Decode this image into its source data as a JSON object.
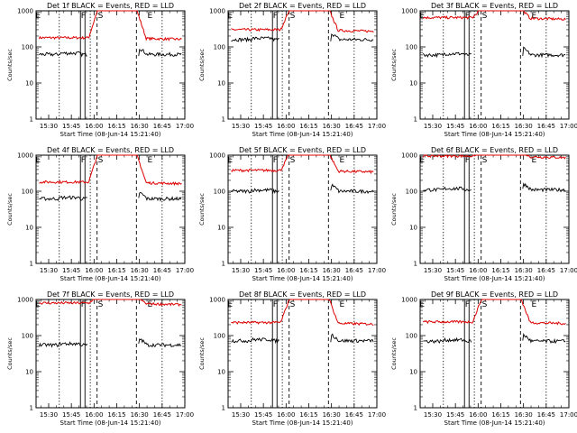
{
  "chart_data": [
    {
      "type": "line",
      "title": "Det 1f BLACK = Events, RED = LLD",
      "red_mid": 180,
      "red_peak": 1000,
      "black_mid": 62,
      "markers": {
        "E_left": true,
        "F": true,
        "S": true,
        "E_right": true
      }
    },
    {
      "type": "line",
      "title": "Det 2f BLACK = Events, RED = LLD",
      "red_mid": 300,
      "red_peak": 1000,
      "black_mid": 160,
      "markers": {
        "E_left": true,
        "F": true,
        "S": true,
        "E_right": true
      }
    },
    {
      "type": "line",
      "title": "Det 3f BLACK = Events, RED = LLD",
      "red_mid": 650,
      "red_peak": 1000,
      "black_mid": 60,
      "markers": {
        "E_left": true,
        "F": true,
        "S": true,
        "E_right": true
      }
    },
    {
      "type": "line",
      "title": "Det 4f BLACK = Events, RED = LLD",
      "red_mid": 180,
      "red_peak": 1000,
      "black_mid": 62,
      "markers": {
        "E_left": true,
        "F": true,
        "S": true,
        "E_right": true
      }
    },
    {
      "type": "line",
      "title": "Det 5f BLACK = Events, RED = LLD",
      "red_mid": 380,
      "red_peak": 1000,
      "black_mid": 100,
      "markers": {
        "E_left": true,
        "F": true,
        "S": true,
        "E_right": true
      }
    },
    {
      "type": "line",
      "title": "Det 6f BLACK = Events, RED = LLD",
      "red_mid": 950,
      "red_peak": 1000,
      "black_mid": 110,
      "markers": {
        "E_left": true,
        "F": true,
        "S": true,
        "E_right": true
      }
    },
    {
      "type": "line",
      "title": "Det 7f BLACK = Events, RED = LLD",
      "red_mid": 800,
      "red_peak": 1000,
      "black_mid": 55,
      "markers": {
        "E_left": true,
        "F": true,
        "S": true,
        "E_right": true
      }
    },
    {
      "type": "line",
      "title": "Det 8f BLACK = Events, RED = LLD",
      "red_mid": 230,
      "red_peak": 1000,
      "black_mid": 72,
      "markers": {
        "E_left": true,
        "F": true,
        "S": true,
        "E_right": true
      }
    },
    {
      "type": "line",
      "title": "Det 9f BLACK = Events, RED = LLD",
      "red_mid": 240,
      "red_peak": 1000,
      "black_mid": 70,
      "markers": {
        "E_left": true,
        "F": true,
        "S": true,
        "E_right": true
      }
    }
  ],
  "common": {
    "ylabel": "Counts/sec",
    "xlabel": "Start Time (08-Jun-14 15:21:40)",
    "xticks": [
      "15:30",
      "15:45",
      "16:00",
      "16:15",
      "16:30",
      "16:45",
      "17:00"
    ],
    "yticks": [
      "1",
      "10",
      "100",
      "1000"
    ],
    "ylim": [
      1,
      1000
    ],
    "yscale": "log",
    "marker_labels": {
      "E": "E",
      "F": "F",
      "S": "S"
    },
    "colors": {
      "events": "#000000",
      "lld": "#dd0000"
    }
  }
}
